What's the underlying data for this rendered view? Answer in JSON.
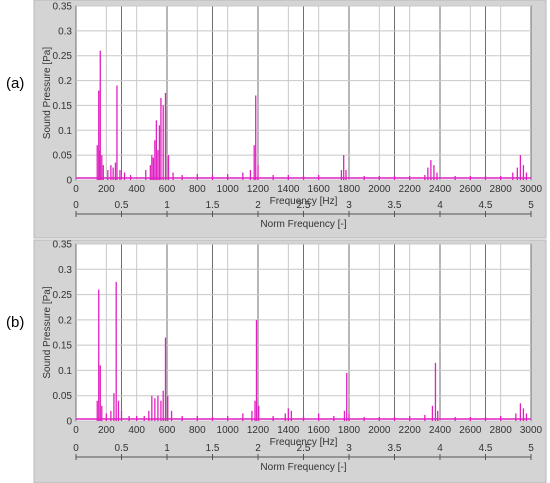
{
  "panels": [
    {
      "label": "(a)"
    },
    {
      "label": "(b)"
    }
  ],
  "chart_data": [
    {
      "type": "line",
      "title": "",
      "ylabel": "Sound Pressure [Pa]",
      "xlabel": "Frequency [Hz]",
      "x2label": "Norm Frequency [-]",
      "xlim": [
        0,
        3000
      ],
      "ylim": [
        0,
        0.35
      ],
      "x2lim": [
        0,
        5
      ],
      "yticks": [
        "0",
        "0.05",
        "0.1",
        "0.15",
        "0.2",
        "0.25",
        "0.3",
        "0.35"
      ],
      "xticks": [
        "0",
        "200",
        "400",
        "600",
        "800",
        "1000",
        "1200",
        "1400",
        "1600",
        "1800",
        "2000",
        "2200",
        "2400",
        "2600",
        "2800",
        "3000"
      ],
      "x2ticks": [
        "0",
        "0.5",
        "1",
        "1.5",
        "2",
        "2.5",
        "3",
        "3.5",
        "4",
        "4.5",
        "5"
      ],
      "series_color": "#e020c0",
      "grid": true,
      "baseline": 0.004,
      "peaks": [
        [
          140,
          0.07
        ],
        [
          150,
          0.18
        ],
        [
          155,
          0.06
        ],
        [
          160,
          0.26
        ],
        [
          170,
          0.05
        ],
        [
          180,
          0.03
        ],
        [
          210,
          0.02
        ],
        [
          230,
          0.03
        ],
        [
          245,
          0.025
        ],
        [
          260,
          0.035
        ],
        [
          270,
          0.19
        ],
        [
          290,
          0.02
        ],
        [
          320,
          0.015
        ],
        [
          360,
          0.01
        ],
        [
          460,
          0.02
        ],
        [
          490,
          0.03
        ],
        [
          500,
          0.05
        ],
        [
          510,
          0.045
        ],
        [
          520,
          0.08
        ],
        [
          530,
          0.12
        ],
        [
          540,
          0.06
        ],
        [
          550,
          0.11
        ],
        [
          560,
          0.165
        ],
        [
          575,
          0.15
        ],
        [
          590,
          0.175
        ],
        [
          610,
          0.05
        ],
        [
          640,
          0.015
        ],
        [
          700,
          0.01
        ],
        [
          800,
          0.012
        ],
        [
          900,
          0.01
        ],
        [
          1000,
          0.012
        ],
        [
          1100,
          0.015
        ],
        [
          1150,
          0.02
        ],
        [
          1175,
          0.07
        ],
        [
          1185,
          0.17
        ],
        [
          1200,
          0.03
        ],
        [
          1300,
          0.01
        ],
        [
          1400,
          0.01
        ],
        [
          1500,
          0.008
        ],
        [
          1600,
          0.01
        ],
        [
          1750,
          0.02
        ],
        [
          1765,
          0.05
        ],
        [
          1780,
          0.02
        ],
        [
          1900,
          0.008
        ],
        [
          2000,
          0.008
        ],
        [
          2100,
          0.008
        ],
        [
          2200,
          0.008
        ],
        [
          2300,
          0.01
        ],
        [
          2320,
          0.025
        ],
        [
          2340,
          0.04
        ],
        [
          2360,
          0.03
        ],
        [
          2380,
          0.015
        ],
        [
          2500,
          0.008
        ],
        [
          2600,
          0.008
        ],
        [
          2700,
          0.008
        ],
        [
          2800,
          0.008
        ],
        [
          2880,
          0.015
        ],
        [
          2910,
          0.025
        ],
        [
          2930,
          0.05
        ],
        [
          2950,
          0.03
        ],
        [
          2970,
          0.015
        ]
      ]
    },
    {
      "type": "line",
      "title": "",
      "ylabel": "Sound Pressure [Pa]",
      "xlabel": "Frequency [Hz]",
      "x2label": "Norm Frequency [-]",
      "xlim": [
        0,
        3000
      ],
      "ylim": [
        0,
        0.35
      ],
      "x2lim": [
        0,
        5
      ],
      "yticks": [
        "0",
        "0.05",
        "0.1",
        "0.15",
        "0.2",
        "0.25",
        "0.3",
        "0.35"
      ],
      "xticks": [
        "0",
        "200",
        "400",
        "600",
        "800",
        "1000",
        "1200",
        "1400",
        "1600",
        "1800",
        "2000",
        "2200",
        "2400",
        "2600",
        "2800",
        "3000"
      ],
      "x2ticks": [
        "0",
        "0.5",
        "1",
        "1.5",
        "2",
        "2.5",
        "3",
        "3.5",
        "4",
        "4.5",
        "5"
      ],
      "series_color": "#e020c0",
      "grid": true,
      "baseline": 0.004,
      "peaks": [
        [
          140,
          0.04
        ],
        [
          150,
          0.26
        ],
        [
          160,
          0.11
        ],
        [
          170,
          0.03
        ],
        [
          200,
          0.015
        ],
        [
          230,
          0.02
        ],
        [
          250,
          0.055
        ],
        [
          265,
          0.275
        ],
        [
          280,
          0.04
        ],
        [
          300,
          0.02
        ],
        [
          350,
          0.01
        ],
        [
          400,
          0.01
        ],
        [
          450,
          0.01
        ],
        [
          480,
          0.02
        ],
        [
          500,
          0.05
        ],
        [
          520,
          0.045
        ],
        [
          540,
          0.05
        ],
        [
          560,
          0.04
        ],
        [
          575,
          0.06
        ],
        [
          590,
          0.165
        ],
        [
          605,
          0.05
        ],
        [
          630,
          0.02
        ],
        [
          700,
          0.01
        ],
        [
          800,
          0.01
        ],
        [
          900,
          0.008
        ],
        [
          1000,
          0.01
        ],
        [
          1100,
          0.015
        ],
        [
          1160,
          0.02
        ],
        [
          1180,
          0.04
        ],
        [
          1190,
          0.2
        ],
        [
          1205,
          0.03
        ],
        [
          1300,
          0.01
        ],
        [
          1380,
          0.015
        ],
        [
          1400,
          0.025
        ],
        [
          1420,
          0.02
        ],
        [
          1500,
          0.01
        ],
        [
          1600,
          0.015
        ],
        [
          1700,
          0.01
        ],
        [
          1770,
          0.02
        ],
        [
          1785,
          0.095
        ],
        [
          1800,
          0.015
        ],
        [
          1900,
          0.008
        ],
        [
          2000,
          0.008
        ],
        [
          2100,
          0.008
        ],
        [
          2200,
          0.01
        ],
        [
          2300,
          0.012
        ],
        [
          2350,
          0.03
        ],
        [
          2370,
          0.115
        ],
        [
          2385,
          0.02
        ],
        [
          2500,
          0.008
        ],
        [
          2600,
          0.008
        ],
        [
          2700,
          0.008
        ],
        [
          2800,
          0.01
        ],
        [
          2900,
          0.015
        ],
        [
          2930,
          0.035
        ],
        [
          2950,
          0.025
        ],
        [
          2970,
          0.015
        ]
      ]
    }
  ]
}
